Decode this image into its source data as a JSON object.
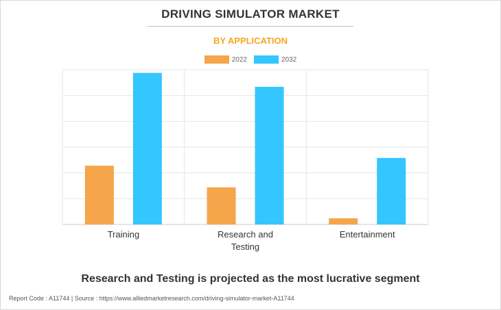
{
  "header": {
    "title": "DRIVING SIMULATOR MARKET",
    "subtitle": "BY APPLICATION"
  },
  "legend": {
    "placement": "top-center",
    "items": [
      {
        "label": "2022",
        "color": "#f5a54a"
      },
      {
        "label": "2032",
        "color": "#33c6ff"
      }
    ]
  },
  "chart_data": {
    "type": "bar",
    "categories": [
      "Training",
      "Research and Testing",
      "Entertainment"
    ],
    "category_lines": [
      [
        "Training"
      ],
      [
        "Research and",
        "Testing"
      ],
      [
        "Entertainment"
      ]
    ],
    "series": [
      {
        "name": "2022",
        "color": "#f5a54a",
        "values": [
          0.38,
          0.24,
          0.04
        ]
      },
      {
        "name": "2032",
        "color": "#33c6ff",
        "values": [
          0.98,
          0.89,
          0.43
        ]
      }
    ],
    "ylim": [
      0,
      1
    ],
    "y_ticks_count": 6,
    "grid": true,
    "axis_values_printed": false
  },
  "note": "Research and Testing is projected as the most lucrative segment",
  "footer": "Report Code : A11744  |  Source : https://www.alliedmarketresearch.com/driving-simulator-market-A11744"
}
